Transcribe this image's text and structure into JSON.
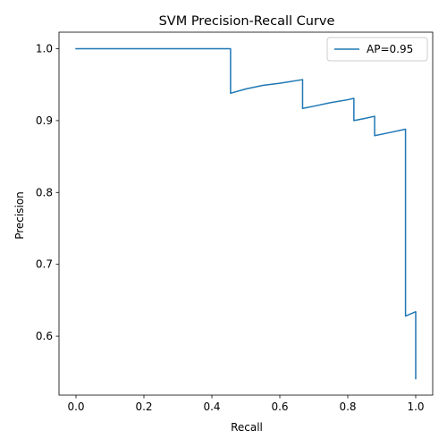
{
  "chart_data": {
    "type": "line",
    "title": "SVM Precision-Recall Curve",
    "xlabel": "Recall",
    "ylabel": "Precision",
    "xlim": [
      -0.05,
      1.05
    ],
    "ylim": [
      0.518,
      1.023
    ],
    "xticks": [
      0.0,
      0.2,
      0.4,
      0.6,
      0.8,
      1.0
    ],
    "xtick_labels": [
      "0.0",
      "0.2",
      "0.4",
      "0.6",
      "0.8",
      "1.0"
    ],
    "yticks": [
      0.6,
      0.7,
      0.8,
      0.9,
      1.0
    ],
    "ytick_labels": [
      "0.6",
      "0.7",
      "0.8",
      "0.9",
      "1.0"
    ],
    "grid": false,
    "legend_position": "top-right",
    "series": [
      {
        "name": "AP=0.95",
        "color": "#1f77b4",
        "x": [
          0.0,
          0.455,
          0.455,
          0.5,
          0.55,
          0.6,
          0.667,
          0.667,
          0.7,
          0.75,
          0.8,
          0.818,
          0.818,
          0.85,
          0.879,
          0.879,
          0.92,
          0.97,
          0.97,
          1.0,
          1.0
        ],
        "y": [
          1.0,
          1.0,
          0.938,
          0.944,
          0.949,
          0.952,
          0.957,
          0.917,
          0.92,
          0.925,
          0.929,
          0.931,
          0.9,
          0.903,
          0.906,
          0.879,
          0.883,
          0.888,
          0.628,
          0.634,
          0.541
        ]
      }
    ]
  }
}
